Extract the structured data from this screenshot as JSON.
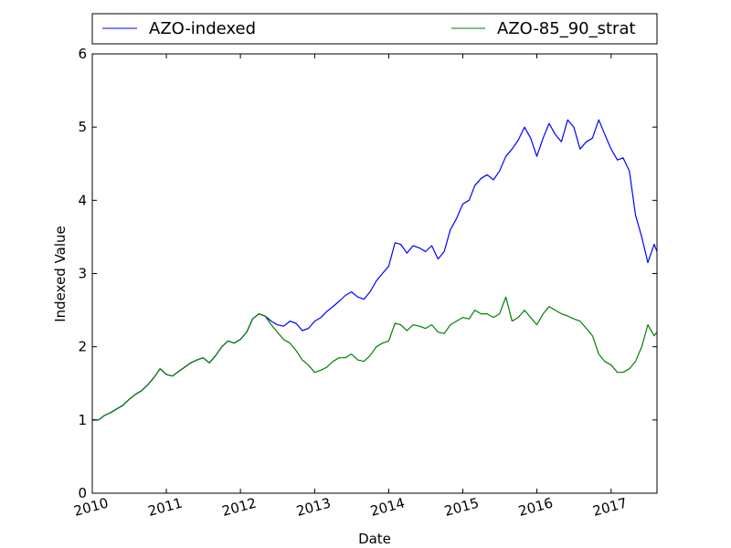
{
  "chart_data": {
    "type": "line",
    "title": "",
    "xlabel": "Date",
    "ylabel": "Indexed Value",
    "xlim": [
      "2010-01-01",
      "2017-08-15"
    ],
    "ylim": [
      0,
      6
    ],
    "x_ticks": [
      {
        "label": "2010",
        "date": "2010-01-01"
      },
      {
        "label": "2011",
        "date": "2011-01-01"
      },
      {
        "label": "2012",
        "date": "2012-01-01"
      },
      {
        "label": "2013",
        "date": "2013-01-01"
      },
      {
        "label": "2014",
        "date": "2014-01-01"
      },
      {
        "label": "2015",
        "date": "2015-01-01"
      },
      {
        "label": "2016",
        "date": "2016-01-01"
      },
      {
        "label": "2017",
        "date": "2017-01-01"
      }
    ],
    "y_ticks": [
      "0",
      "1",
      "2",
      "3",
      "4",
      "5",
      "6"
    ],
    "grid": false,
    "legend": "top, above plot, two columns",
    "series": [
      {
        "name": "AZO-indexed",
        "color": "#0000ff",
        "points": [
          [
            "2010-01-04",
            1.0
          ],
          [
            "2010-02-01",
            1.0
          ],
          [
            "2010-03-01",
            1.06
          ],
          [
            "2010-04-01",
            1.1
          ],
          [
            "2010-05-01",
            1.15
          ],
          [
            "2010-06-01",
            1.2
          ],
          [
            "2010-07-01",
            1.28
          ],
          [
            "2010-08-01",
            1.35
          ],
          [
            "2010-09-01",
            1.4
          ],
          [
            "2010-10-01",
            1.48
          ],
          [
            "2010-11-01",
            1.58
          ],
          [
            "2010-12-01",
            1.7
          ],
          [
            "2011-01-01",
            1.62
          ],
          [
            "2011-02-01",
            1.6
          ],
          [
            "2011-03-01",
            1.66
          ],
          [
            "2011-04-01",
            1.72
          ],
          [
            "2011-05-01",
            1.78
          ],
          [
            "2011-06-01",
            1.82
          ],
          [
            "2011-07-01",
            1.85
          ],
          [
            "2011-08-01",
            1.78
          ],
          [
            "2011-09-01",
            1.88
          ],
          [
            "2011-10-01",
            2.0
          ],
          [
            "2011-11-01",
            2.08
          ],
          [
            "2011-12-01",
            2.05
          ],
          [
            "2012-01-01",
            2.1
          ],
          [
            "2012-02-01",
            2.2
          ],
          [
            "2012-03-01",
            2.38
          ],
          [
            "2012-04-01",
            2.45
          ],
          [
            "2012-05-01",
            2.42
          ],
          [
            "2012-06-01",
            2.35
          ],
          [
            "2012-07-01",
            2.3
          ],
          [
            "2012-08-01",
            2.28
          ],
          [
            "2012-09-01",
            2.35
          ],
          [
            "2012-10-01",
            2.32
          ],
          [
            "2012-11-01",
            2.22
          ],
          [
            "2012-12-01",
            2.25
          ],
          [
            "2013-01-01",
            2.35
          ],
          [
            "2013-02-01",
            2.4
          ],
          [
            "2013-03-01",
            2.48
          ],
          [
            "2013-04-01",
            2.55
          ],
          [
            "2013-05-01",
            2.62
          ],
          [
            "2013-06-01",
            2.7
          ],
          [
            "2013-07-01",
            2.75
          ],
          [
            "2013-08-01",
            2.68
          ],
          [
            "2013-09-01",
            2.65
          ],
          [
            "2013-10-01",
            2.75
          ],
          [
            "2013-11-01",
            2.9
          ],
          [
            "2013-12-01",
            3.0
          ],
          [
            "2014-01-01",
            3.1
          ],
          [
            "2014-02-01",
            3.42
          ],
          [
            "2014-03-01",
            3.4
          ],
          [
            "2014-04-01",
            3.28
          ],
          [
            "2014-05-01",
            3.38
          ],
          [
            "2014-06-01",
            3.35
          ],
          [
            "2014-07-01",
            3.3
          ],
          [
            "2014-08-01",
            3.38
          ],
          [
            "2014-09-01",
            3.2
          ],
          [
            "2014-10-01",
            3.3
          ],
          [
            "2014-11-01",
            3.6
          ],
          [
            "2014-12-01",
            3.75
          ],
          [
            "2015-01-01",
            3.95
          ],
          [
            "2015-02-01",
            4.0
          ],
          [
            "2015-03-01",
            4.2
          ],
          [
            "2015-04-01",
            4.3
          ],
          [
            "2015-05-01",
            4.35
          ],
          [
            "2015-06-01",
            4.28
          ],
          [
            "2015-07-01",
            4.4
          ],
          [
            "2015-08-01",
            4.6
          ],
          [
            "2015-09-01",
            4.7
          ],
          [
            "2015-10-01",
            4.82
          ],
          [
            "2015-11-01",
            5.0
          ],
          [
            "2015-12-01",
            4.85
          ],
          [
            "2016-01-01",
            4.6
          ],
          [
            "2016-02-01",
            4.85
          ],
          [
            "2016-03-01",
            5.05
          ],
          [
            "2016-04-01",
            4.9
          ],
          [
            "2016-05-01",
            4.8
          ],
          [
            "2016-06-01",
            5.1
          ],
          [
            "2016-07-01",
            5.0
          ],
          [
            "2016-08-01",
            4.7
          ],
          [
            "2016-09-01",
            4.8
          ],
          [
            "2016-10-01",
            4.85
          ],
          [
            "2016-11-01",
            5.1
          ],
          [
            "2016-12-01",
            4.9
          ],
          [
            "2017-01-01",
            4.7
          ],
          [
            "2017-02-01",
            4.55
          ],
          [
            "2017-03-01",
            4.58
          ],
          [
            "2017-04-01",
            4.4
          ],
          [
            "2017-05-01",
            3.8
          ],
          [
            "2017-06-01",
            3.5
          ],
          [
            "2017-07-01",
            3.15
          ],
          [
            "2017-08-01",
            3.4
          ],
          [
            "2017-08-15",
            3.3
          ]
        ]
      },
      {
        "name": "AZO-85_90_strat",
        "color": "#008000",
        "points": [
          [
            "2010-01-04",
            1.0
          ],
          [
            "2010-02-01",
            1.0
          ],
          [
            "2010-03-01",
            1.06
          ],
          [
            "2010-04-01",
            1.1
          ],
          [
            "2010-05-01",
            1.15
          ],
          [
            "2010-06-01",
            1.2
          ],
          [
            "2010-07-01",
            1.28
          ],
          [
            "2010-08-01",
            1.35
          ],
          [
            "2010-09-01",
            1.4
          ],
          [
            "2010-10-01",
            1.48
          ],
          [
            "2010-11-01",
            1.58
          ],
          [
            "2010-12-01",
            1.7
          ],
          [
            "2011-01-01",
            1.62
          ],
          [
            "2011-02-01",
            1.6
          ],
          [
            "2011-03-01",
            1.66
          ],
          [
            "2011-04-01",
            1.72
          ],
          [
            "2011-05-01",
            1.78
          ],
          [
            "2011-06-01",
            1.82
          ],
          [
            "2011-07-01",
            1.85
          ],
          [
            "2011-08-01",
            1.78
          ],
          [
            "2011-09-01",
            1.88
          ],
          [
            "2011-10-01",
            2.0
          ],
          [
            "2011-11-01",
            2.08
          ],
          [
            "2011-12-01",
            2.05
          ],
          [
            "2012-01-01",
            2.1
          ],
          [
            "2012-02-01",
            2.2
          ],
          [
            "2012-03-01",
            2.38
          ],
          [
            "2012-04-01",
            2.45
          ],
          [
            "2012-05-01",
            2.42
          ],
          [
            "2012-06-01",
            2.3
          ],
          [
            "2012-07-01",
            2.2
          ],
          [
            "2012-08-01",
            2.1
          ],
          [
            "2012-09-01",
            2.05
          ],
          [
            "2012-10-01",
            1.95
          ],
          [
            "2012-11-01",
            1.82
          ],
          [
            "2012-12-01",
            1.75
          ],
          [
            "2013-01-01",
            1.65
          ],
          [
            "2013-02-01",
            1.68
          ],
          [
            "2013-03-01",
            1.72
          ],
          [
            "2013-04-01",
            1.8
          ],
          [
            "2013-05-01",
            1.85
          ],
          [
            "2013-06-01",
            1.85
          ],
          [
            "2013-07-01",
            1.9
          ],
          [
            "2013-08-01",
            1.82
          ],
          [
            "2013-09-01",
            1.8
          ],
          [
            "2013-10-01",
            1.88
          ],
          [
            "2013-11-01",
            2.0
          ],
          [
            "2013-12-01",
            2.05
          ],
          [
            "2014-01-01",
            2.08
          ],
          [
            "2014-02-01",
            2.32
          ],
          [
            "2014-03-01",
            2.3
          ],
          [
            "2014-04-01",
            2.22
          ],
          [
            "2014-05-01",
            2.3
          ],
          [
            "2014-06-01",
            2.28
          ],
          [
            "2014-07-01",
            2.25
          ],
          [
            "2014-08-01",
            2.3
          ],
          [
            "2014-09-01",
            2.2
          ],
          [
            "2014-10-01",
            2.18
          ],
          [
            "2014-11-01",
            2.3
          ],
          [
            "2014-12-01",
            2.35
          ],
          [
            "2015-01-01",
            2.4
          ],
          [
            "2015-02-01",
            2.38
          ],
          [
            "2015-03-01",
            2.5
          ],
          [
            "2015-04-01",
            2.45
          ],
          [
            "2015-05-01",
            2.45
          ],
          [
            "2015-06-01",
            2.4
          ],
          [
            "2015-07-01",
            2.45
          ],
          [
            "2015-08-01",
            2.68
          ],
          [
            "2015-09-01",
            2.35
          ],
          [
            "2015-10-01",
            2.4
          ],
          [
            "2015-11-01",
            2.5
          ],
          [
            "2015-12-01",
            2.4
          ],
          [
            "2016-01-01",
            2.3
          ],
          [
            "2016-02-01",
            2.45
          ],
          [
            "2016-03-01",
            2.55
          ],
          [
            "2016-04-01",
            2.5
          ],
          [
            "2016-05-01",
            2.45
          ],
          [
            "2016-06-01",
            2.42
          ],
          [
            "2016-07-01",
            2.38
          ],
          [
            "2016-08-01",
            2.35
          ],
          [
            "2016-09-01",
            2.25
          ],
          [
            "2016-10-01",
            2.15
          ],
          [
            "2016-11-01",
            1.9
          ],
          [
            "2016-12-01",
            1.8
          ],
          [
            "2017-01-01",
            1.75
          ],
          [
            "2017-02-01",
            1.65
          ],
          [
            "2017-03-01",
            1.65
          ],
          [
            "2017-04-01",
            1.7
          ],
          [
            "2017-05-01",
            1.8
          ],
          [
            "2017-06-01",
            2.0
          ],
          [
            "2017-07-01",
            2.3
          ],
          [
            "2017-08-01",
            2.15
          ],
          [
            "2017-08-15",
            2.2
          ]
        ]
      }
    ]
  }
}
